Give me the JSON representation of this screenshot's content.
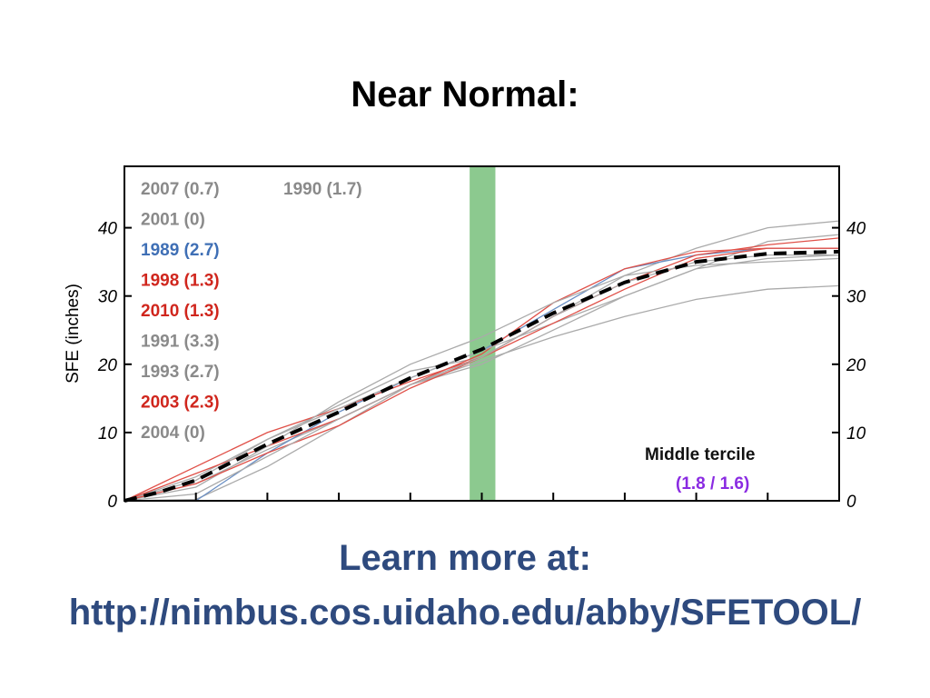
{
  "slide": {
    "title": "Near Normal:",
    "footer_line1": "Learn more at:",
    "footer_line2": "http://nimbus.cos.uidaho.edu/abby/SFETOOL/",
    "footer_color": "#2e4a7e"
  },
  "chart_data": {
    "type": "line",
    "ylabel": "SFE (inches)",
    "xlabel": "",
    "ylim": [
      0,
      49
    ],
    "xlim": [
      0,
      100
    ],
    "y_ticks": [
      0,
      10,
      20,
      30,
      40
    ],
    "y_tick_labels": [
      "0",
      "10",
      "20",
      "30",
      "40"
    ],
    "x_tick_count": 9,
    "grid": false,
    "highlight_band": {
      "x_start": 48.3,
      "x_end": 51.9,
      "color": "#8cc98f"
    },
    "annotation": {
      "label": "Middle tercile",
      "value": "(1.8 / 1.6)",
      "label_color": "#111111",
      "value_color": "#8a2be2"
    },
    "legend": {
      "placement": "top-left",
      "entries": [
        {
          "label": "2007 (0.7)",
          "color": "#8a8a8a"
        },
        {
          "label": "1990 (1.7)",
          "color": "#8a8a8a"
        },
        {
          "label": "2001 (0)",
          "color": "#8a8a8a"
        },
        {
          "label": "1989 (2.7)",
          "color": "#3f6fb5"
        },
        {
          "label": "1998 (1.3)",
          "color": "#d0261d"
        },
        {
          "label": "2010 (1.3)",
          "color": "#d0261d"
        },
        {
          "label": "1991 (3.3)",
          "color": "#8a8a8a"
        },
        {
          "label": "1993 (2.7)",
          "color": "#8a8a8a"
        },
        {
          "label": "2003 (2.3)",
          "color": "#d0261d"
        },
        {
          "label": "2004 (0)",
          "color": "#8a8a8a"
        }
      ]
    },
    "mean_series": {
      "style": "dashed",
      "color": "#000000",
      "x": [
        0,
        5,
        10,
        20,
        30,
        40,
        50,
        60,
        70,
        80,
        90,
        100
      ],
      "y": [
        0,
        1.3,
        3.0,
        8.3,
        13.0,
        18.0,
        22.2,
        27.5,
        32.0,
        35.0,
        36.2,
        36.5
      ]
    },
    "series": [
      {
        "color": "#aaaaaa",
        "x": [
          0,
          10,
          20,
          30,
          40,
          50,
          60,
          70,
          80,
          90,
          100
        ],
        "y": [
          0,
          0.2,
          5.0,
          11.0,
          17.0,
          20.0,
          25.0,
          30.0,
          34.0,
          38.0,
          39.0
        ]
      },
      {
        "color": "#aaaaaa",
        "x": [
          0,
          10,
          20,
          30,
          40,
          50,
          60,
          70,
          80,
          90,
          100
        ],
        "y": [
          0,
          3.5,
          9.0,
          14.0,
          19.0,
          21.0,
          27.0,
          33.0,
          37.0,
          40.0,
          41.0
        ]
      },
      {
        "color": "#aaaaaa",
        "x": [
          0,
          10,
          20,
          30,
          40,
          50,
          60,
          70,
          80,
          90,
          100
        ],
        "y": [
          0,
          2.5,
          7.5,
          12.0,
          17.0,
          20.5,
          24.0,
          27.0,
          29.5,
          31.0,
          31.5
        ]
      },
      {
        "color": "#6a8fc4",
        "x": [
          0,
          10,
          20,
          30,
          40,
          50,
          60,
          70,
          80,
          90,
          100
        ],
        "y": [
          0,
          0.0,
          7.0,
          13.0,
          18.0,
          22.0,
          28.0,
          34.0,
          36.0,
          37.0,
          37.0
        ]
      },
      {
        "color": "#e05048",
        "x": [
          0,
          10,
          20,
          30,
          40,
          50,
          60,
          70,
          80,
          90,
          100
        ],
        "y": [
          0,
          5.0,
          10.0,
          13.5,
          17.5,
          21.0,
          27.0,
          32.0,
          36.0,
          37.5,
          38.5
        ]
      },
      {
        "color": "#e05048",
        "x": [
          0,
          10,
          20,
          30,
          40,
          50,
          60,
          70,
          80,
          90,
          100
        ],
        "y": [
          0,
          4.0,
          8.0,
          12.0,
          17.0,
          21.5,
          29.0,
          34.0,
          36.5,
          37.0,
          37.0
        ]
      },
      {
        "color": "#aaaaaa",
        "x": [
          0,
          10,
          20,
          30,
          40,
          50,
          60,
          70,
          80,
          90,
          100
        ],
        "y": [
          0,
          2.0,
          8.0,
          14.5,
          20.0,
          24.0,
          29.0,
          33.0,
          34.5,
          35.0,
          35.5
        ]
      },
      {
        "color": "#aaaaaa",
        "x": [
          0,
          10,
          20,
          30,
          40,
          50,
          60,
          70,
          80,
          90,
          100
        ],
        "y": [
          0,
          3.0,
          9.0,
          13.5,
          18.0,
          22.0,
          26.0,
          30.0,
          34.0,
          35.5,
          36.0
        ]
      },
      {
        "color": "#e05048",
        "x": [
          0,
          10,
          20,
          30,
          40,
          50,
          60,
          70,
          80,
          90,
          100
        ],
        "y": [
          0,
          2.5,
          7.0,
          11.0,
          16.5,
          21.0,
          26.0,
          31.0,
          35.5,
          37.0,
          37.0
        ]
      },
      {
        "color": "#aaaaaa",
        "x": [
          0,
          10,
          20,
          30,
          40,
          50,
          60,
          70,
          80,
          90,
          100
        ],
        "y": [
          0,
          1.0,
          6.5,
          12.0,
          17.0,
          21.0,
          27.0,
          32.0,
          35.0,
          36.0,
          36.0
        ]
      }
    ]
  }
}
